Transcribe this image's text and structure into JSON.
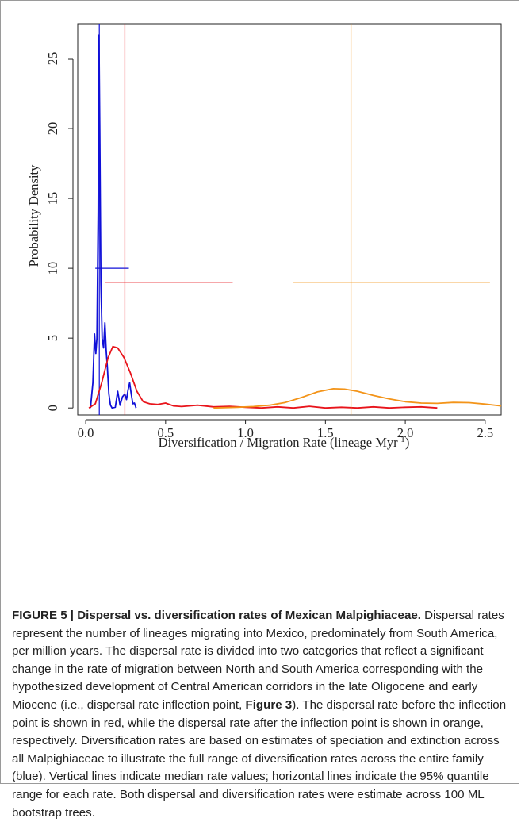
{
  "chart_data": {
    "type": "line",
    "xlabel": "Diversification / Migration Rate (lineage Myr",
    "xlabel_sup": "-1",
    "xlabel_close": ")",
    "ylabel": "Probability Density",
    "xlim": [
      -0.05,
      2.6
    ],
    "ylim": [
      -0.5,
      27.5
    ],
    "x_ticks": [
      0.0,
      0.5,
      1.0,
      1.5,
      2.0,
      2.5
    ],
    "x_tick_labels": [
      "0.0",
      "0.5",
      "1.0",
      "1.5",
      "2.0",
      "2.5"
    ],
    "y_ticks": [
      0,
      5,
      10,
      15,
      20,
      25
    ],
    "y_tick_labels": [
      "0",
      "5",
      "10",
      "15",
      "20",
      "25"
    ],
    "grid": false,
    "series": [
      {
        "color": "#1010d8",
        "points": [
          [
            0.03,
            0.0
          ],
          [
            0.045,
            1.8
          ],
          [
            0.055,
            5.3
          ],
          [
            0.063,
            3.9
          ],
          [
            0.07,
            5.0
          ],
          [
            0.078,
            14.0
          ],
          [
            0.083,
            26.7
          ],
          [
            0.088,
            20.0
          ],
          [
            0.095,
            9.0
          ],
          [
            0.103,
            5.0
          ],
          [
            0.112,
            4.3
          ],
          [
            0.12,
            6.1
          ],
          [
            0.128,
            4.1
          ],
          [
            0.135,
            3.0
          ],
          [
            0.145,
            1.0
          ],
          [
            0.155,
            0.2
          ],
          [
            0.165,
            0.0
          ],
          [
            0.185,
            0.05
          ],
          [
            0.2,
            1.2
          ],
          [
            0.215,
            0.2
          ],
          [
            0.23,
            0.8
          ],
          [
            0.245,
            1.0
          ],
          [
            0.255,
            0.6
          ],
          [
            0.265,
            1.3
          ],
          [
            0.275,
            1.8
          ],
          [
            0.285,
            1.0
          ],
          [
            0.295,
            0.3
          ],
          [
            0.305,
            0.35
          ],
          [
            0.315,
            0.0
          ]
        ],
        "median": 0.085,
        "ci95": [
          0.06,
          0.27
        ],
        "ci_y": 10
      },
      {
        "color": "#e8141b",
        "points": [
          [
            0.02,
            0.0
          ],
          [
            0.06,
            0.3
          ],
          [
            0.1,
            1.8
          ],
          [
            0.14,
            3.6
          ],
          [
            0.17,
            4.4
          ],
          [
            0.2,
            4.3
          ],
          [
            0.24,
            3.6
          ],
          [
            0.28,
            2.5
          ],
          [
            0.32,
            1.2
          ],
          [
            0.36,
            0.45
          ],
          [
            0.4,
            0.3
          ],
          [
            0.45,
            0.25
          ],
          [
            0.5,
            0.35
          ],
          [
            0.55,
            0.15
          ],
          [
            0.6,
            0.1
          ],
          [
            0.7,
            0.2
          ],
          [
            0.8,
            0.08
          ],
          [
            0.9,
            0.12
          ],
          [
            1.0,
            0.05
          ],
          [
            1.1,
            0.0
          ],
          [
            1.2,
            0.08
          ],
          [
            1.3,
            0.0
          ],
          [
            1.4,
            0.12
          ],
          [
            1.5,
            0.0
          ],
          [
            1.6,
            0.05
          ],
          [
            1.7,
            0.0
          ],
          [
            1.8,
            0.08
          ],
          [
            1.9,
            0.0
          ],
          [
            2.0,
            0.05
          ],
          [
            2.1,
            0.08
          ],
          [
            2.2,
            0.0
          ]
        ],
        "median": 0.245,
        "ci95": [
          0.12,
          0.92
        ],
        "ci_y": 9
      },
      {
        "color": "#f39419",
        "points": [
          [
            0.8,
            0.0
          ],
          [
            0.95,
            0.05
          ],
          [
            1.05,
            0.1
          ],
          [
            1.15,
            0.2
          ],
          [
            1.25,
            0.4
          ],
          [
            1.35,
            0.75
          ],
          [
            1.45,
            1.15
          ],
          [
            1.55,
            1.38
          ],
          [
            1.62,
            1.35
          ],
          [
            1.7,
            1.2
          ],
          [
            1.8,
            0.9
          ],
          [
            1.9,
            0.65
          ],
          [
            2.0,
            0.45
          ],
          [
            2.1,
            0.35
          ],
          [
            2.2,
            0.33
          ],
          [
            2.3,
            0.4
          ],
          [
            2.4,
            0.38
          ],
          [
            2.5,
            0.28
          ],
          [
            2.6,
            0.15
          ]
        ],
        "median": 1.66,
        "ci95": [
          1.3,
          2.53
        ],
        "ci_y": 9
      }
    ]
  },
  "caption": {
    "label": "FIGURE 5 | Dispersal vs. diversification rates of Mexican Malpighiaceae.",
    "text1": " Dispersal rates represent the number of lineages migrating into Mexico, predominately from South America, per million years. The dispersal rate is divided into two categories that reflect a significant change in the rate of migration between North and South America corresponding with the hypothesized development of Central American corridors in the late Oligocene and early Miocene (i.e., dispersal rate inflection point, ",
    "ref": "Figure 3",
    "text2": "). The dispersal rate before the inflection point is shown in red, while the dispersal rate after the inflection point is shown in orange, respectively. Diversification rates are based on estimates of speciation and extinction across all Malpighiaceae to illustrate the full range of diversification rates across the entire family (blue). Vertical lines indicate median rate values; horizontal lines indicate the 95% quantile range for each rate. Both dispersal and diversification rates were estimate across 100 ML bootstrap trees."
  }
}
